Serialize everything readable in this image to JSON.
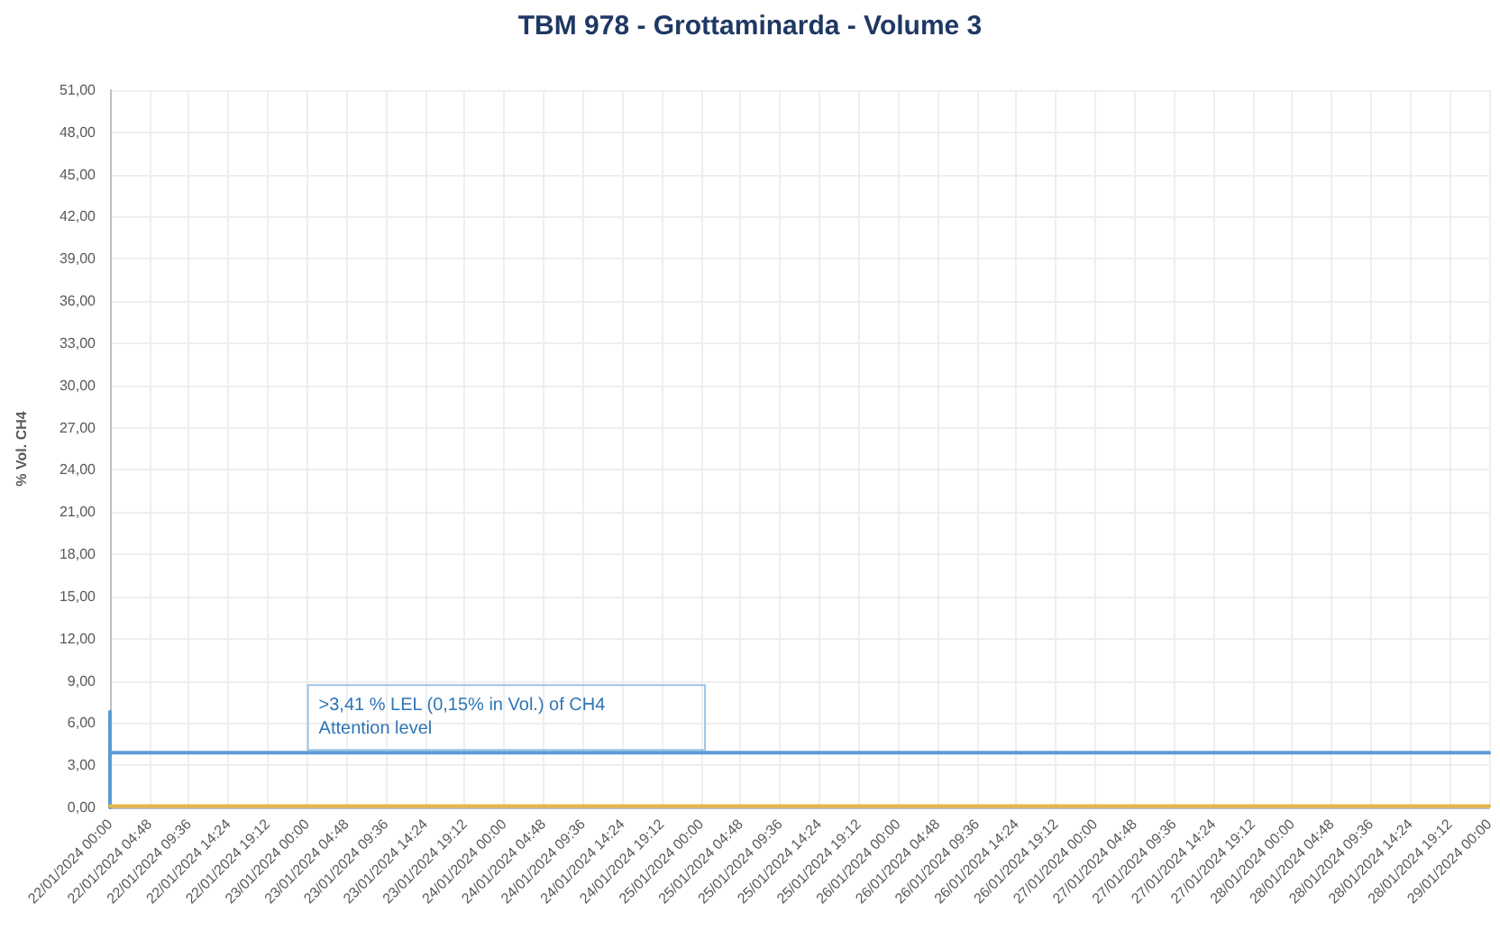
{
  "chart_data": {
    "type": "line",
    "title": "TBM 978 - Grottaminarda - Volume 3",
    "ylabel": "% Vol. CH4",
    "annotations": [
      {
        "text": ">3,41 % LEL (0,15% in Vol.) of CH4\nAttention level",
        "x": "2024-01-23T00:00",
        "y": 3.9
      }
    ],
    "series": [
      {
        "color": "#5b9bd5",
        "x": [
          "2024-01-22T00:00",
          "2024-01-22T00:00",
          "2024-01-22T00:00",
          "2024-01-29T00:00"
        ],
        "values": [
          0,
          6.8,
          3.9,
          3.9
        ]
      },
      {
        "color": "#e6b54a",
        "x": [
          "2024-01-22T00:00",
          "2024-01-29T00:00"
        ],
        "values": [
          0.1,
          0.1
        ]
      }
    ],
    "xlim": [
      "2024-01-22T00:00",
      "2024-01-29T00:00"
    ],
    "xticks": [
      {
        "value": "2024-01-22T00:00",
        "label": "22/01/2024 00:00"
      },
      {
        "value": "2024-01-22T04:48",
        "label": "22/01/2024 04:48"
      },
      {
        "value": "2024-01-22T09:36",
        "label": "22/01/2024 09:36"
      },
      {
        "value": "2024-01-22T14:24",
        "label": "22/01/2024 14:24"
      },
      {
        "value": "2024-01-22T19:12",
        "label": "22/01/2024 19:12"
      },
      {
        "value": "2024-01-23T00:00",
        "label": "23/01/2024 00:00"
      },
      {
        "value": "2024-01-23T04:48",
        "label": "23/01/2024 04:48"
      },
      {
        "value": "2024-01-23T09:36",
        "label": "23/01/2024 09:36"
      },
      {
        "value": "2024-01-23T14:24",
        "label": "23/01/2024 14:24"
      },
      {
        "value": "2024-01-23T19:12",
        "label": "23/01/2024 19:12"
      },
      {
        "value": "2024-01-24T00:00",
        "label": "24/01/2024 00:00"
      },
      {
        "value": "2024-01-24T04:48",
        "label": "24/01/2024 04:48"
      },
      {
        "value": "2024-01-24T09:36",
        "label": "24/01/2024 09:36"
      },
      {
        "value": "2024-01-24T14:24",
        "label": "24/01/2024 14:24"
      },
      {
        "value": "2024-01-24T19:12",
        "label": "24/01/2024 19:12"
      },
      {
        "value": "2024-01-25T00:00",
        "label": "25/01/2024 00:00"
      },
      {
        "value": "2024-01-25T04:48",
        "label": "25/01/2024 04:48"
      },
      {
        "value": "2024-01-25T09:36",
        "label": "25/01/2024 09:36"
      },
      {
        "value": "2024-01-25T14:24",
        "label": "25/01/2024 14:24"
      },
      {
        "value": "2024-01-25T19:12",
        "label": "25/01/2024 19:12"
      },
      {
        "value": "2024-01-26T00:00",
        "label": "26/01/2024 00:00"
      },
      {
        "value": "2024-01-26T04:48",
        "label": "26/01/2024 04:48"
      },
      {
        "value": "2024-01-26T09:36",
        "label": "26/01/2024 09:36"
      },
      {
        "value": "2024-01-26T14:24",
        "label": "26/01/2024 14:24"
      },
      {
        "value": "2024-01-26T19:12",
        "label": "26/01/2024 19:12"
      },
      {
        "value": "2024-01-27T00:00",
        "label": "27/01/2024 00:00"
      },
      {
        "value": "2024-01-27T04:48",
        "label": "27/01/2024 04:48"
      },
      {
        "value": "2024-01-27T09:36",
        "label": "27/01/2024 09:36"
      },
      {
        "value": "2024-01-27T14:24",
        "label": "27/01/2024 14:24"
      },
      {
        "value": "2024-01-27T19:12",
        "label": "27/01/2024 19:12"
      },
      {
        "value": "2024-01-28T00:00",
        "label": "28/01/2024 00:00"
      },
      {
        "value": "2024-01-28T04:48",
        "label": "28/01/2024 04:48"
      },
      {
        "value": "2024-01-28T09:36",
        "label": "28/01/2024 09:36"
      },
      {
        "value": "2024-01-28T14:24",
        "label": "28/01/2024 14:24"
      },
      {
        "value": "2024-01-28T19:12",
        "label": "28/01/2024 19:12"
      },
      {
        "value": "2024-01-29T00:00",
        "label": "29/01/2024 00:00"
      }
    ],
    "ylim": [
      0,
      51
    ],
    "yticks": [
      {
        "value": 0,
        "label": "0,00"
      },
      {
        "value": 3,
        "label": "3,00"
      },
      {
        "value": 6,
        "label": "6,00"
      },
      {
        "value": 9,
        "label": "9,00"
      },
      {
        "value": 12,
        "label": "12,00"
      },
      {
        "value": 15,
        "label": "15,00"
      },
      {
        "value": 18,
        "label": "18,00"
      },
      {
        "value": 21,
        "label": "21,00"
      },
      {
        "value": 24,
        "label": "24,00"
      },
      {
        "value": 27,
        "label": "27,00"
      },
      {
        "value": 30,
        "label": "30,00"
      },
      {
        "value": 33,
        "label": "33,00"
      },
      {
        "value": 36,
        "label": "36,00"
      },
      {
        "value": 39,
        "label": "39,00"
      },
      {
        "value": 42,
        "label": "42,00"
      },
      {
        "value": 45,
        "label": "45,00"
      },
      {
        "value": 48,
        "label": "48,00"
      },
      {
        "value": 51,
        "label": "51,00"
      }
    ],
    "grid": true,
    "marker": "none",
    "line_style": "solid"
  }
}
